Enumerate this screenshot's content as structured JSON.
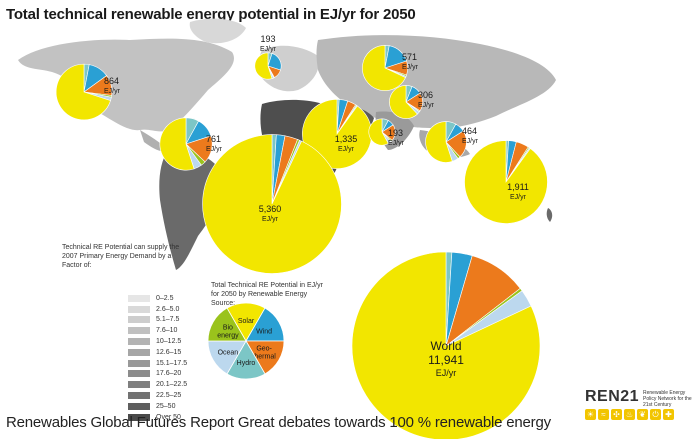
{
  "title": "Total technical renewable energy potential in EJ/yr for 2050",
  "footer": "Renewables Global Futures Report Great debates towards 100 % renewable energy",
  "colors": {
    "solar": "#f2e600",
    "wind": "#2aa0d4",
    "geothermal": "#ec7a1c",
    "hydro": "#7cc6c6",
    "ocean": "#bcd8ee",
    "bioenergy": "#9ac31c"
  },
  "legend": {
    "title": "Technical RE Potential can supply the 2007 Primary Energy Demand by a Factor of:",
    "classes": [
      {
        "label": "0–2.5",
        "color": "#e6e6e6"
      },
      {
        "label": "2.6–5.0",
        "color": "#d9d9d9"
      },
      {
        "label": "5.1–7.5",
        "color": "#cdcdcd"
      },
      {
        "label": "7.6–10",
        "color": "#c0c0c0"
      },
      {
        "label": "10–12.5",
        "color": "#b3b3b3"
      },
      {
        "label": "12.6–15",
        "color": "#a6a6a6"
      },
      {
        "label": "15.1–17.5",
        "color": "#999999"
      },
      {
        "label": "17.6–20",
        "color": "#8c8c8c"
      },
      {
        "label": "20.1–22.5",
        "color": "#7f7f7f"
      },
      {
        "label": "22.5–25",
        "color": "#727272"
      },
      {
        "label": "25–50",
        "color": "#5e5e5e"
      },
      {
        "label": "Over 50",
        "color": "#4a4a4a"
      }
    ]
  },
  "source_legend": {
    "title": "Total Technical RE Potential in EJ/yr for 2050 by Renewable Energy Source:",
    "labels": {
      "bioenergy": "Bio energy",
      "solar": "Solar",
      "ocean": "Ocean",
      "wind": "Wind",
      "hydro": "Hydro",
      "geothermal": "Geo-thermal"
    }
  },
  "regions": [
    {
      "id": "north-america",
      "value": "864",
      "unit": "EJ/yr",
      "total": 864,
      "shares": {
        "solar": 0.7,
        "wind": 0.12,
        "geothermal": 0.12,
        "hydro": 0.03,
        "ocean": 0.02,
        "bioenergy": 0.01
      }
    },
    {
      "id": "europe",
      "value": "193",
      "unit": "EJ/yr",
      "total": 193,
      "shares": {
        "solar": 0.55,
        "wind": 0.25,
        "geothermal": 0.12,
        "hydro": 0.05,
        "ocean": 0.02,
        "bioenergy": 0.01
      }
    },
    {
      "id": "former-soviet-union",
      "value": "571",
      "unit": "EJ/yr",
      "total": 571,
      "shares": {
        "solar": 0.68,
        "wind": 0.17,
        "geothermal": 0.1,
        "hydro": 0.03,
        "ocean": 0.01,
        "bioenergy": 0.01
      }
    },
    {
      "id": "east-asia",
      "value": "306",
      "unit": "EJ/yr",
      "total": 306,
      "shares": {
        "solar": 0.62,
        "wind": 0.1,
        "geothermal": 0.18,
        "hydro": 0.06,
        "ocean": 0.03,
        "bioenergy": 0.01
      }
    },
    {
      "id": "latin-america",
      "value": "761",
      "unit": "EJ/yr",
      "total": 761,
      "shares": {
        "solar": 0.55,
        "wind": 0.12,
        "geothermal": 0.17,
        "hydro": 0.08,
        "ocean": 0.05,
        "bioenergy": 0.03
      }
    },
    {
      "id": "middle-east",
      "value": "1,335",
      "unit": "EJ/yr",
      "total": 1335,
      "shares": {
        "solar": 0.9,
        "wind": 0.04,
        "geothermal": 0.04,
        "hydro": 0.01,
        "ocean": 0.005,
        "bioenergy": 0.005
      }
    },
    {
      "id": "south-asia",
      "value": "193",
      "unit": "EJ/yr",
      "total": 193,
      "shares": {
        "solar": 0.58,
        "wind": 0.08,
        "geothermal": 0.2,
        "hydro": 0.08,
        "ocean": 0.04,
        "bioenergy": 0.02
      }
    },
    {
      "id": "southeast-asia",
      "value": "464",
      "unit": "EJ/yr",
      "total": 464,
      "shares": {
        "solar": 0.55,
        "wind": 0.08,
        "geothermal": 0.22,
        "hydro": 0.08,
        "ocean": 0.05,
        "bioenergy": 0.02
      }
    },
    {
      "id": "africa",
      "value": "5,360",
      "unit": "EJ/yr",
      "total": 5360,
      "shares": {
        "solar": 0.93,
        "wind": 0.02,
        "geothermal": 0.03,
        "hydro": 0.01,
        "ocean": 0.005,
        "bioenergy": 0.005
      }
    },
    {
      "id": "oceania",
      "value": "1,911",
      "unit": "EJ/yr",
      "total": 1911,
      "shares": {
        "solar": 0.9,
        "wind": 0.03,
        "geothermal": 0.05,
        "hydro": 0.01,
        "ocean": 0.005,
        "bioenergy": 0.005
      }
    }
  ],
  "world": {
    "label": "World",
    "value": "11,941",
    "unit": "EJ/yr",
    "total": 11941,
    "shares": {
      "solar": 0.82,
      "wind": 0.035,
      "geothermal": 0.1,
      "hydro": 0.01,
      "ocean": 0.03,
      "bioenergy": 0.005
    }
  },
  "brand": {
    "name": "REN21",
    "tagline": "Renewable Energy Policy Network for the 21st Century"
  }
}
